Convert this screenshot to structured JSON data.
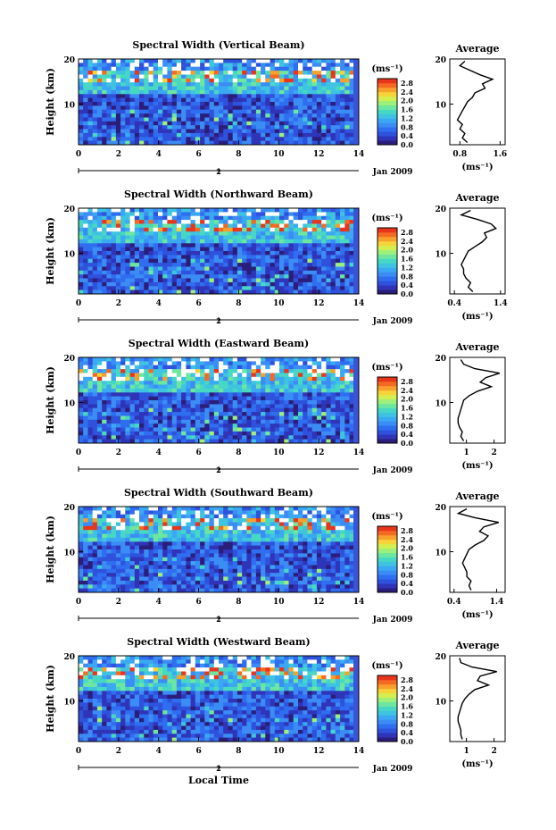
{
  "chart_data": [
    {
      "type": "heatmap",
      "title": "Spectral Width (Vertical Beam)",
      "ylabel": "Height (km)",
      "x_ticks": [
        "0",
        "2",
        "4",
        "6",
        "8",
        "10",
        "12",
        "14"
      ],
      "y_ticks": [
        "10",
        "20"
      ],
      "xlim": [
        0,
        14
      ],
      "ylim": [
        1,
        20
      ],
      "date_marker": "2",
      "date_label": "Jan 2009",
      "colorbar": {
        "unit": "(ms⁻¹)",
        "ticks": [
          "0.0",
          "0.4",
          "0.8",
          "1.2",
          "1.6",
          "2.0",
          "2.4",
          "2.8"
        ],
        "range": [
          0,
          3.0
        ]
      },
      "profile": {
        "title": "Average",
        "xlabel": "(ms⁻¹)",
        "x_ticks": [
          "0.8",
          "1.6"
        ],
        "y_ticks": [
          "10",
          "20"
        ],
        "xlim": [
          0.6,
          1.7
        ],
        "ylim": [
          1,
          20
        ],
        "heights": [
          1.5,
          2.5,
          3.5,
          4.5,
          5.5,
          6.5,
          7.5,
          8.5,
          9.5,
          10.5,
          11.5,
          12.5,
          13.5,
          14.5,
          15.5,
          16.5,
          17.5,
          18.5,
          19.5
        ],
        "values": [
          0.95,
          0.85,
          0.9,
          0.8,
          0.85,
          0.75,
          0.8,
          0.85,
          0.9,
          0.95,
          1.05,
          1.1,
          1.3,
          1.25,
          1.45,
          1.2,
          1.0,
          0.8,
          0.9
        ]
      }
    },
    {
      "type": "heatmap",
      "title": "Spectral Width (Northward Beam)",
      "ylabel": "Height (km)",
      "x_ticks": [
        "0",
        "2",
        "4",
        "6",
        "8",
        "10",
        "12",
        "14"
      ],
      "y_ticks": [
        "10",
        "20"
      ],
      "xlim": [
        0,
        14
      ],
      "ylim": [
        1,
        20
      ],
      "date_marker": "2",
      "date_label": "Jan 2009",
      "colorbar": {
        "unit": "(ms⁻¹)",
        "ticks": [
          "0.0",
          "0.4",
          "0.8",
          "1.2",
          "1.6",
          "2.0",
          "2.4",
          "2.8"
        ],
        "range": [
          0,
          3.0
        ]
      },
      "profile": {
        "title": "Average",
        "xlabel": "(ms⁻¹)",
        "x_ticks": [
          "0.4",
          "1.4"
        ],
        "y_ticks": [
          "10",
          "20"
        ],
        "xlim": [
          0.3,
          1.5
        ],
        "ylim": [
          1,
          20
        ],
        "heights": [
          1.5,
          2.5,
          3.5,
          4.5,
          5.5,
          6.5,
          7.5,
          8.5,
          9.5,
          10.5,
          11.5,
          12.5,
          13.5,
          14.5,
          15.5,
          16.5,
          17.5,
          18.5,
          19.5
        ],
        "values": [
          0.8,
          0.7,
          0.75,
          0.65,
          0.6,
          0.6,
          0.55,
          0.6,
          0.65,
          0.7,
          0.85,
          1.0,
          1.1,
          1.05,
          1.3,
          1.2,
          0.9,
          0.55,
          0.75
        ]
      }
    },
    {
      "type": "heatmap",
      "title": "Spectral Width (Eastward Beam)",
      "ylabel": "Height (km)",
      "x_ticks": [
        "0",
        "2",
        "4",
        "6",
        "8",
        "10",
        "12",
        "14"
      ],
      "y_ticks": [
        "10",
        "20"
      ],
      "xlim": [
        0,
        14
      ],
      "ylim": [
        1,
        20
      ],
      "date_marker": "2",
      "date_label": "Jan 2009",
      "colorbar": {
        "unit": "(ms⁻¹)",
        "ticks": [
          "0.0",
          "0.4",
          "0.8",
          "1.2",
          "1.6",
          "2.0",
          "2.4",
          "2.8"
        ],
        "range": [
          0,
          3.0
        ]
      },
      "profile": {
        "title": "Average",
        "xlabel": "(ms⁻¹)",
        "x_ticks": [
          "1",
          "2"
        ],
        "y_ticks": [
          "10",
          "20"
        ],
        "xlim": [
          0.4,
          2.4
        ],
        "ylim": [
          1,
          20
        ],
        "heights": [
          1.5,
          2.5,
          3.5,
          4.5,
          5.5,
          6.5,
          7.5,
          8.5,
          9.5,
          10.5,
          11.5,
          12.5,
          13.5,
          14.5,
          15.5,
          16.5,
          17.5,
          18.5,
          19.5
        ],
        "values": [
          0.9,
          0.8,
          0.85,
          0.75,
          0.7,
          0.7,
          0.75,
          0.8,
          0.85,
          0.9,
          1.1,
          1.4,
          1.9,
          1.5,
          1.7,
          2.2,
          1.3,
          0.9,
          0.8
        ]
      }
    },
    {
      "type": "heatmap",
      "title": "Spectral Width (Southward Beam)",
      "ylabel": "Height (km)",
      "x_ticks": [
        "0",
        "2",
        "4",
        "6",
        "8",
        "10",
        "12",
        "14"
      ],
      "y_ticks": [
        "10",
        "20"
      ],
      "xlim": [
        0,
        14
      ],
      "ylim": [
        1,
        20
      ],
      "date_marker": "2",
      "date_label": "Jan 2009",
      "colorbar": {
        "unit": "(ms⁻¹)",
        "ticks": [
          "0.0",
          "0.4",
          "0.8",
          "1.2",
          "1.6",
          "2.0",
          "2.4",
          "2.8"
        ],
        "range": [
          0,
          3.0
        ]
      },
      "profile": {
        "title": "Average",
        "xlabel": "(ms⁻¹)",
        "x_ticks": [
          "0.4",
          "1.4"
        ],
        "y_ticks": [
          "10",
          "20"
        ],
        "xlim": [
          0.3,
          1.6
        ],
        "ylim": [
          1,
          20
        ],
        "heights": [
          1.5,
          2.5,
          3.5,
          4.5,
          5.5,
          6.5,
          7.5,
          8.5,
          9.5,
          10.5,
          11.5,
          12.5,
          13.5,
          14.5,
          15.5,
          16.5,
          17.5,
          18.5,
          19.5
        ],
        "values": [
          0.8,
          0.75,
          0.8,
          0.7,
          0.7,
          0.65,
          0.6,
          0.65,
          0.7,
          0.75,
          0.9,
          1.1,
          1.2,
          1.0,
          1.1,
          1.45,
          0.9,
          0.5,
          0.7
        ]
      }
    },
    {
      "type": "heatmap",
      "title": "Spectral Width (Westward Beam)",
      "ylabel": "Height (km)",
      "xlabel": "Local Time",
      "x_ticks": [
        "0",
        "2",
        "4",
        "6",
        "8",
        "10",
        "12",
        "14"
      ],
      "y_ticks": [
        "10",
        "20"
      ],
      "xlim": [
        0,
        14
      ],
      "ylim": [
        1,
        20
      ],
      "date_marker": "2",
      "date_label": "Jan 2009",
      "colorbar": {
        "unit": "(ms⁻¹)",
        "ticks": [
          "0.0",
          "0.4",
          "0.8",
          "1.2",
          "1.6",
          "2.0",
          "2.4",
          "2.8"
        ],
        "range": [
          0,
          3.0
        ]
      },
      "profile": {
        "title": "Average",
        "xlabel": "(ms⁻¹)",
        "x_ticks": [
          "1",
          "2"
        ],
        "y_ticks": [
          "10",
          "20"
        ],
        "xlim": [
          0.4,
          2.4
        ],
        "ylim": [
          1,
          20
        ],
        "heights": [
          1.5,
          2.5,
          3.5,
          4.5,
          5.5,
          6.5,
          7.5,
          8.5,
          9.5,
          10.5,
          11.5,
          12.5,
          13.5,
          14.5,
          15.5,
          16.5,
          17.5,
          18.5,
          19.5
        ],
        "values": [
          0.85,
          0.8,
          0.8,
          0.75,
          0.7,
          0.7,
          0.75,
          0.8,
          0.85,
          0.95,
          1.1,
          1.3,
          1.8,
          1.4,
          1.5,
          2.1,
          1.2,
          0.8,
          0.75
        ]
      }
    }
  ]
}
